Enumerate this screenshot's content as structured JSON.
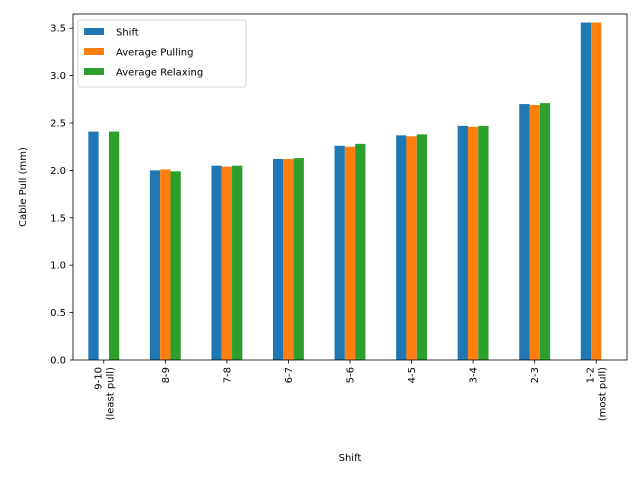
{
  "chart_data": {
    "type": "bar",
    "title": "",
    "xlabel": "Shift",
    "ylabel": "Cable Pull (mm)",
    "ylim": [
      0,
      3.65
    ],
    "yticks": [
      "0.0",
      "0.5",
      "1.0",
      "1.5",
      "2.0",
      "2.5",
      "3.0",
      "3.5"
    ],
    "grid": false,
    "legend_position": "top-left",
    "categories": [
      [
        "9-10",
        "(least pull)"
      ],
      [
        "8-9"
      ],
      [
        "7-8"
      ],
      [
        "6-7"
      ],
      [
        "5-6"
      ],
      [
        "4-5"
      ],
      [
        "3-4"
      ],
      [
        "2-3"
      ],
      [
        "1-2",
        "(most pull)"
      ]
    ],
    "series": [
      {
        "name": "Shift",
        "color": "#1f77b4",
        "values": [
          2.41,
          2.0,
          2.05,
          2.12,
          2.26,
          2.37,
          2.47,
          2.7,
          3.56
        ]
      },
      {
        "name": "Average Pulling",
        "color": "#ff7f0e",
        "values": [
          null,
          2.01,
          2.04,
          2.12,
          2.25,
          2.36,
          2.46,
          2.69,
          3.56
        ]
      },
      {
        "name": "Average Relaxing",
        "color": "#2ca02c",
        "values": [
          2.41,
          1.99,
          2.05,
          2.13,
          2.28,
          2.38,
          2.47,
          2.71,
          null
        ]
      }
    ]
  }
}
